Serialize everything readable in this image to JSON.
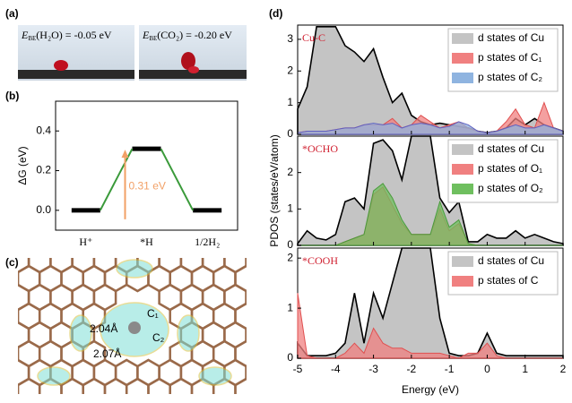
{
  "panel_labels": [
    "(a)",
    "(b)",
    "(c)",
    "(d)"
  ],
  "panel_a": {
    "left": {
      "symbol": "E",
      "subscript": "BE",
      "text": "(H₂O) = -0.05 eV"
    },
    "right": {
      "symbol": "E",
      "subscript": "BE",
      "text": "(CO₂) = -0.20 eV"
    }
  },
  "panel_c": {
    "labels": [
      "2.04Å",
      "C₁",
      "C₂",
      "2.07Å"
    ]
  },
  "chart_data": [
    {
      "type": "step",
      "categories": [
        "H⁺",
        "*H",
        "1/2H₂"
      ],
      "values": [
        0,
        0.31,
        0
      ],
      "ylabel": "ΔG (eV)",
      "ylim": [
        -0.1,
        0.55
      ],
      "yticks": [
        {
          "value": 0,
          "label": "0.0"
        },
        {
          "value": 0.2,
          "label": "0.2"
        },
        {
          "value": 0.4,
          "label": "0.4"
        }
      ],
      "annotation": "0.31 eV",
      "level_color": "#000000",
      "connector_color": "#3a9a3a",
      "arrow_color": "#f2a066"
    },
    {
      "type": "area",
      "annotation": "Cu-C",
      "x": [
        -5,
        -4.75,
        -4.5,
        -4.25,
        -4,
        -3.75,
        -3.5,
        -3.25,
        -3,
        -2.75,
        -2.5,
        -2.25,
        -2,
        -1.75,
        -1.5,
        -1.25,
        -1,
        -0.75,
        -0.5,
        -0.25,
        0,
        0.25,
        0.5,
        0.75,
        1,
        1.25,
        1.5,
        1.75,
        2
      ],
      "xlim": [
        -5,
        2
      ],
      "ylim": [
        0,
        3.45
      ],
      "yticks": [
        0,
        1,
        2,
        3
      ],
      "series": [
        {
          "name": "d states of Cu",
          "color": "#c4c4c4",
          "line_color": "#000000",
          "values": [
            0.8,
            1.5,
            3.4,
            3.4,
            3.4,
            2.8,
            2.6,
            2.3,
            2.7,
            1.8,
            1.0,
            1.3,
            0.6,
            0.4,
            0.3,
            0.35,
            0.3,
            0.25,
            0.2,
            0.1,
            0.05,
            0.1,
            0.2,
            0.5,
            0.3,
            0.5,
            0.3,
            0.2,
            0.1
          ]
        },
        {
          "name": "p states of C₁",
          "color": "#f08080",
          "line_color": "#e05050",
          "values": [
            0.05,
            0.1,
            0.1,
            0.1,
            0.15,
            0.2,
            0.2,
            0.3,
            0.3,
            0.3,
            0.5,
            0.2,
            0.3,
            0.6,
            0.4,
            0.2,
            0.3,
            0.4,
            0.2,
            0.1,
            0.05,
            0.1,
            0.4,
            0.8,
            0.3,
            0.2,
            1.0,
            0.2,
            0.1
          ]
        },
        {
          "name": "p states of C₂",
          "color": "#8fb4e0",
          "line_color": "#6060c0",
          "values": [
            0.05,
            0.1,
            0.1,
            0.1,
            0.15,
            0.2,
            0.2,
            0.3,
            0.35,
            0.3,
            0.35,
            0.2,
            0.3,
            0.35,
            0.3,
            0.2,
            0.25,
            0.4,
            0.3,
            0.1,
            0.05,
            0.1,
            0.2,
            0.3,
            0.2,
            0.2,
            0.3,
            0.2,
            0.1
          ]
        }
      ]
    },
    {
      "type": "area",
      "annotation": "*OCHO",
      "ylabel": "PDOS (states/eV/atom)",
      "x": [
        -5,
        -4.75,
        -4.5,
        -4.25,
        -4,
        -3.75,
        -3.5,
        -3.25,
        -3,
        -2.75,
        -2.5,
        -2.25,
        -2,
        -1.75,
        -1.5,
        -1.25,
        -1,
        -0.75,
        -0.5,
        -0.25,
        0,
        0.25,
        0.5,
        0.75,
        1,
        1.25,
        1.5,
        1.75,
        2
      ],
      "xlim": [
        -5,
        2
      ],
      "ylim": [
        0,
        3
      ],
      "yticks": [
        0,
        1,
        2
      ],
      "series": [
        {
          "name": "d states of Cu",
          "color": "#c4c4c4",
          "line_color": "#000000",
          "values": [
            0.05,
            0.4,
            0.2,
            0.15,
            0.3,
            1.2,
            1.3,
            1.0,
            2.8,
            2.9,
            2.6,
            1.8,
            3.0,
            3.0,
            3.0,
            1.3,
            0.9,
            1.2,
            0.1,
            0.1,
            0.3,
            0.2,
            0.2,
            0.4,
            0.2,
            0.3,
            0.2,
            0.1,
            0.05
          ]
        },
        {
          "name": "p states of O₁",
          "color": "#f08080",
          "line_color": "#e05050",
          "values": [
            0,
            0,
            0,
            0,
            0,
            0.1,
            0.2,
            0.3,
            1.4,
            1.6,
            1.1,
            0.6,
            0.3,
            0.3,
            0.3,
            1.0,
            0.4,
            0.6,
            0.05,
            0,
            0,
            0,
            0,
            0,
            0,
            0,
            0,
            0,
            0
          ]
        },
        {
          "name": "p states of O₂",
          "color": "#6fbf5f",
          "line_color": "#4a9a3a",
          "values": [
            0,
            0,
            0,
            0,
            0,
            0.1,
            0.2,
            0.3,
            1.5,
            1.7,
            1.3,
            0.7,
            0.3,
            0.3,
            0.3,
            1.2,
            0.5,
            0.7,
            0.05,
            0,
            0,
            0,
            0,
            0,
            0,
            0,
            0,
            0,
            0
          ]
        }
      ]
    },
    {
      "type": "area",
      "annotation": "*COOH",
      "xlabel": "Energy (eV)",
      "x": [
        -5,
        -4.75,
        -4.5,
        -4.25,
        -4,
        -3.75,
        -3.5,
        -3.25,
        -3,
        -2.75,
        -2.5,
        -2.25,
        -2,
        -1.75,
        -1.5,
        -1.25,
        -1,
        -0.75,
        -0.5,
        -0.25,
        0,
        0.25,
        0.5,
        0.75,
        1,
        1.25,
        1.5,
        1.75,
        2
      ],
      "xlim": [
        -5,
        2
      ],
      "xticks": [
        -5,
        -4,
        -3,
        -2,
        -1,
        0,
        1,
        2
      ],
      "ylim": [
        0,
        2.2
      ],
      "yticks": [
        0,
        1,
        2
      ],
      "series": [
        {
          "name": "d states of Cu",
          "color": "#c4c4c4",
          "line_color": "#000000",
          "values": [
            0.3,
            0.05,
            0.05,
            0.05,
            0.1,
            0.3,
            1.3,
            0.3,
            1.3,
            0.8,
            1.5,
            2.2,
            2.2,
            2.2,
            2.2,
            0.8,
            0.1,
            0.05,
            0.05,
            0.1,
            0.5,
            0.1,
            0.05,
            0.05,
            0.05,
            0.05,
            0.05,
            0.05,
            0.05
          ]
        },
        {
          "name": "p states of C",
          "color": "#f08080",
          "line_color": "#e05050",
          "values": [
            1.3,
            0.05,
            0,
            0,
            0,
            0.1,
            0.3,
            0.1,
            0.6,
            0.3,
            0.2,
            0.2,
            0.1,
            0.1,
            0.1,
            0.1,
            0.05,
            0,
            0.1,
            0.1,
            0.3,
            0.05,
            0,
            0,
            0,
            0,
            0,
            0,
            0
          ]
        }
      ]
    }
  ]
}
